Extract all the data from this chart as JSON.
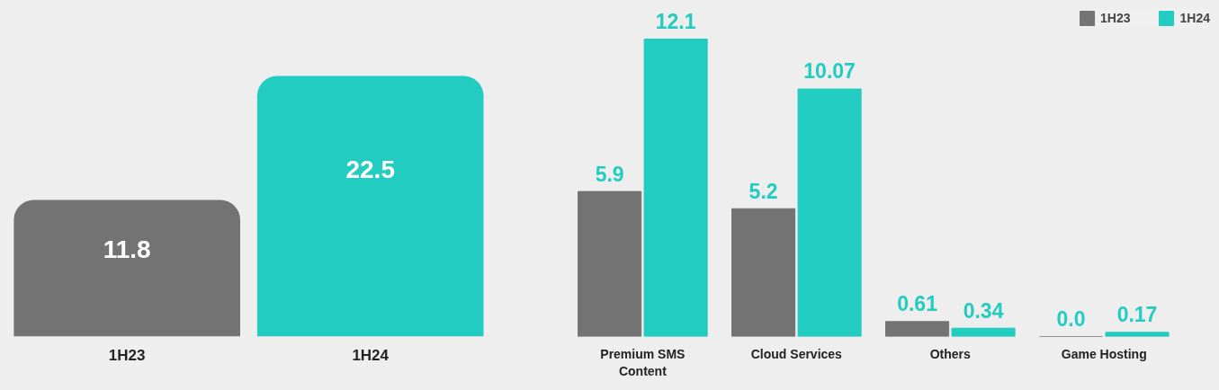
{
  "chart_data": [
    {
      "type": "bar",
      "categories": [
        "1H23",
        "1H24"
      ],
      "values": [
        11.8,
        22.5
      ],
      "colors": [
        "#737373",
        "#22ccc1"
      ],
      "data_labels": true,
      "legend": false
    },
    {
      "type": "bar",
      "categories": [
        "Premium SMS Content",
        "Cloud Services",
        "Others",
        "Game Hosting"
      ],
      "series": [
        {
          "name": "1H23",
          "color": "#737373",
          "values": [
            5.9,
            5.2,
            0.61,
            0.0
          ],
          "value_labels": [
            "5.9",
            "5.2",
            "0.61",
            "0.0"
          ]
        },
        {
          "name": "1H24",
          "color": "#22ccc1",
          "values": [
            12.1,
            10.07,
            0.34,
            0.17
          ],
          "value_labels": [
            "12.1",
            "10.07",
            "0.34",
            "0.17"
          ]
        }
      ],
      "legend": "top right"
    }
  ]
}
